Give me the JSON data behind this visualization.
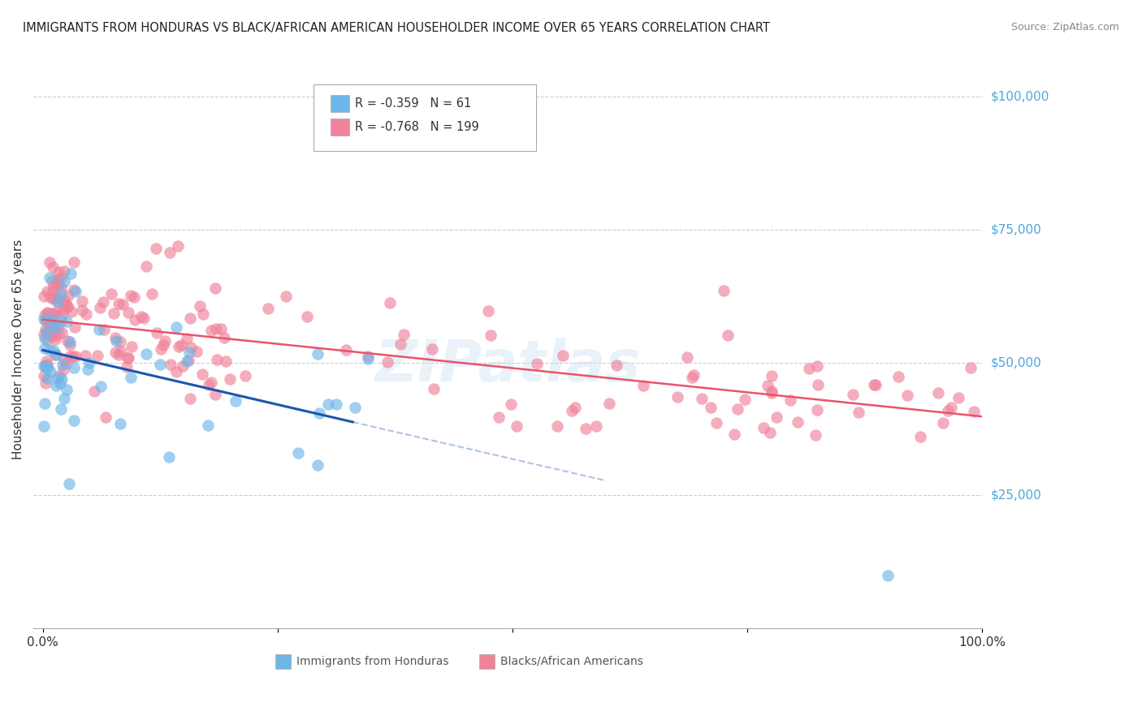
{
  "title": "IMMIGRANTS FROM HONDURAS VS BLACK/AFRICAN AMERICAN HOUSEHOLDER INCOME OVER 65 YEARS CORRELATION CHART",
  "source": "Source: ZipAtlas.com",
  "ylabel": "Householder Income Over 65 years",
  "y_tick_labels": [
    "$25,000",
    "$50,000",
    "$75,000",
    "$100,000"
  ],
  "y_tick_values": [
    25000,
    50000,
    75000,
    100000
  ],
  "ylim": [
    0,
    105000
  ],
  "xlim": [
    0.0,
    1.0
  ],
  "legend_blue_r": "-0.359",
  "legend_blue_n": "61",
  "legend_pink_r": "-0.768",
  "legend_pink_n": "199",
  "legend_label_blue": "Immigrants from Honduras",
  "legend_label_pink": "Blacks/African Americans",
  "watermark": "ZIPatlas",
  "blue_color": "#6eb6e8",
  "pink_color": "#f0829a",
  "blue_line_color": "#1a56b0",
  "pink_line_color": "#e8546a",
  "title_color": "#222222",
  "right_label_color": "#4da6d9",
  "grid_color": "#cccccc",
  "background_color": "#ffffff",
  "blue_seed": 10,
  "pink_seed": 20,
  "n_blue": 61,
  "n_pink": 199
}
